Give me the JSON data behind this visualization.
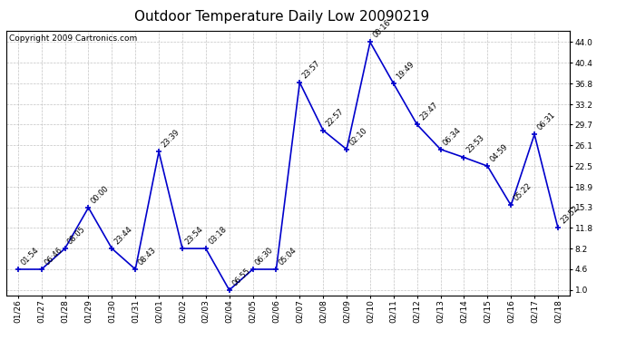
{
  "title": "Outdoor Temperature Daily Low 20090219",
  "copyright": "Copyright 2009 Cartronics.com",
  "x_labels": [
    "01/26",
    "01/27",
    "01/28",
    "01/29",
    "01/30",
    "01/31",
    "02/01",
    "02/02",
    "02/03",
    "02/04",
    "02/05",
    "02/06",
    "02/07",
    "02/08",
    "02/09",
    "02/10",
    "02/11",
    "02/12",
    "02/13",
    "02/14",
    "02/15",
    "02/16",
    "02/17",
    "02/18"
  ],
  "y_values": [
    4.6,
    4.6,
    8.2,
    15.3,
    8.2,
    4.6,
    25.0,
    8.2,
    8.2,
    1.0,
    4.6,
    4.6,
    37.0,
    28.7,
    25.4,
    44.0,
    36.8,
    29.7,
    25.4,
    24.0,
    22.5,
    15.7,
    28.0,
    11.8
  ],
  "point_labels": [
    "01:54",
    "06:46",
    "08:05",
    "00:00",
    "23:44",
    "08:43",
    "23:39",
    "23:54",
    "03:18",
    "06:55",
    "06:30",
    "05:04",
    "23:57",
    "22:57",
    "02:10",
    "00:16",
    "19:49",
    "23:47",
    "06:34",
    "23:53",
    "04:59",
    "05:22",
    "06:31",
    "23:52"
  ],
  "y_ticks": [
    1.0,
    4.6,
    8.2,
    11.8,
    15.3,
    18.9,
    22.5,
    26.1,
    29.7,
    33.2,
    36.8,
    40.4,
    44.0
  ],
  "ylim": [
    0.0,
    46.0
  ],
  "line_color": "#0000cc",
  "marker_color": "#0000cc",
  "bg_color": "#ffffff",
  "grid_color": "#aaaaaa",
  "title_fontsize": 11,
  "label_fontsize": 6.5,
  "point_label_fontsize": 6.0,
  "copyright_fontsize": 6.5
}
